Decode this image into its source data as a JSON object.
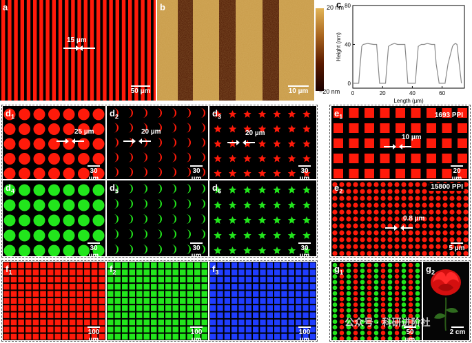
{
  "panels": {
    "a": {
      "label": "a",
      "annotation": "15 µm",
      "scale": "50 µm"
    },
    "b": {
      "label": "b",
      "scale": "10 µm",
      "colorbar_max": "20 nm",
      "colorbar_min": "−20 nm"
    },
    "c": {
      "label": "c"
    },
    "d1": {
      "label": "d",
      "sub": "1",
      "annotation": "25 µm",
      "scale": "30 µm"
    },
    "d2": {
      "label": "d",
      "sub": "2",
      "annotation": "20 µm",
      "scale": "30 µm"
    },
    "d3": {
      "label": "d",
      "sub": "3",
      "annotation": "20 µm",
      "scale": "30 µm"
    },
    "d4": {
      "label": "d",
      "sub": "4",
      "scale": "30 µm"
    },
    "d5": {
      "label": "d",
      "sub": "5",
      "scale": "30 µm"
    },
    "d6": {
      "label": "d",
      "sub": "6",
      "scale": "30 µm"
    },
    "e1": {
      "label": "e",
      "sub": "1",
      "ppi": "1693 PPI",
      "annotation": "10 µm",
      "scale": "20 µm"
    },
    "e2": {
      "label": "e",
      "sub": "2",
      "ppi": "15800 PPI",
      "annotation": "0.8 µm",
      "scale": "5 µm"
    },
    "f1": {
      "label": "f",
      "sub": "1",
      "scale": "100 µm"
    },
    "f2": {
      "label": "f",
      "sub": "2",
      "scale": "100 µm"
    },
    "f3": {
      "label": "f",
      "sub": "3",
      "scale": "100 µm"
    },
    "g1": {
      "label": "g",
      "sub": "1",
      "scale": "50 µm"
    },
    "g2": {
      "label": "g",
      "sub": "2",
      "scale": "2 cm"
    }
  },
  "watermark": "公众号 · 科研进阶社",
  "colors": {
    "red": "#ff1a0a",
    "green": "#22e61c",
    "blue": "#1f3dff"
  },
  "chart_data": {
    "type": "line",
    "title": "",
    "xlabel": "Length (µm)",
    "ylabel": "Height (nm)",
    "xlim": [
      0,
      75
    ],
    "ylim": [
      -5,
      80
    ],
    "xticks": [
      0,
      20,
      40,
      60
    ],
    "yticks": [
      0,
      40,
      80
    ],
    "series": [
      {
        "x": [
          0,
          4,
          5,
          6,
          7,
          10,
          14,
          16,
          17,
          18,
          21,
          22,
          23,
          24,
          26,
          28,
          30,
          32,
          35,
          36,
          37,
          38,
          41,
          42,
          43,
          44,
          46,
          48,
          50,
          53,
          54,
          55,
          56,
          58,
          60,
          62,
          64,
          67,
          68,
          69,
          70,
          73
        ],
        "y": [
          0,
          0,
          20,
          38,
          40,
          41,
          40,
          40,
          20,
          0,
          0,
          0,
          20,
          38,
          40,
          41,
          40,
          40,
          40,
          20,
          0,
          0,
          0,
          0,
          20,
          38,
          40,
          40,
          41,
          40,
          40,
          40,
          20,
          0,
          0,
          0,
          20,
          38,
          40,
          41,
          40,
          0
        ]
      }
    ]
  }
}
